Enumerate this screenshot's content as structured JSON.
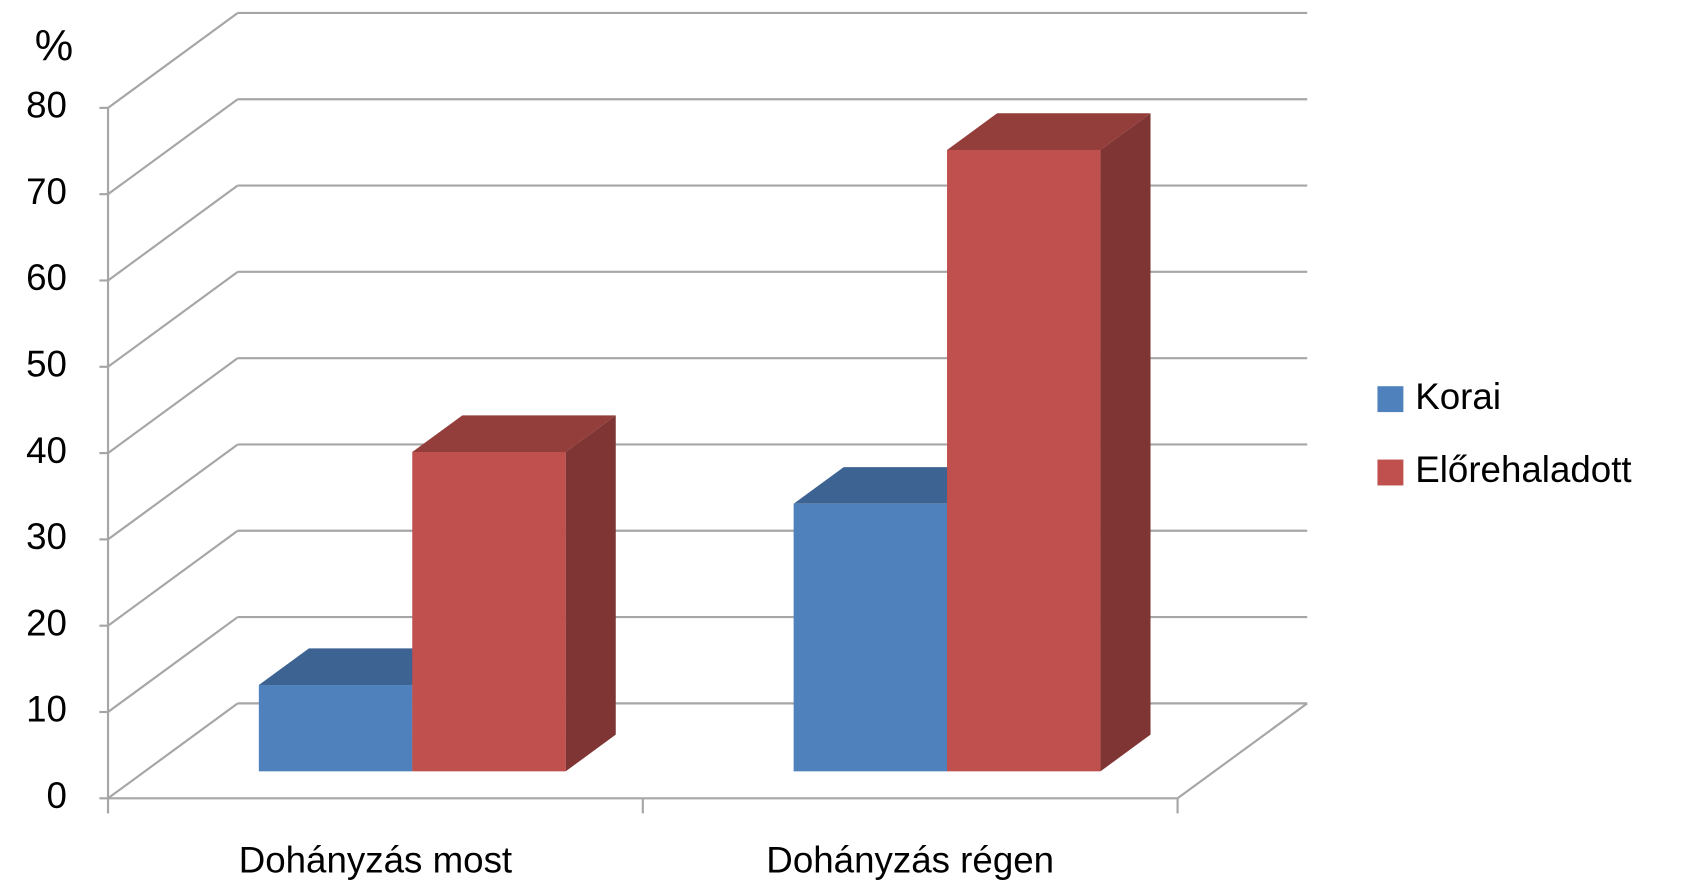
{
  "chart_data": {
    "type": "bar3d",
    "y_label": "%",
    "categories": [
      "Dohányzás most",
      "Dohányzás régen"
    ],
    "series": [
      {
        "name": "Korai",
        "color": "#4f81bd",
        "values": [
          10,
          31
        ]
      },
      {
        "name": "Előrehaladott",
        "color": "#c0504d",
        "values": [
          37,
          72
        ]
      }
    ],
    "ylim": [
      0,
      80
    ],
    "yticks": [
      0,
      10,
      20,
      30,
      40,
      50,
      60,
      70,
      80
    ],
    "grid": true,
    "legend": "right"
  }
}
